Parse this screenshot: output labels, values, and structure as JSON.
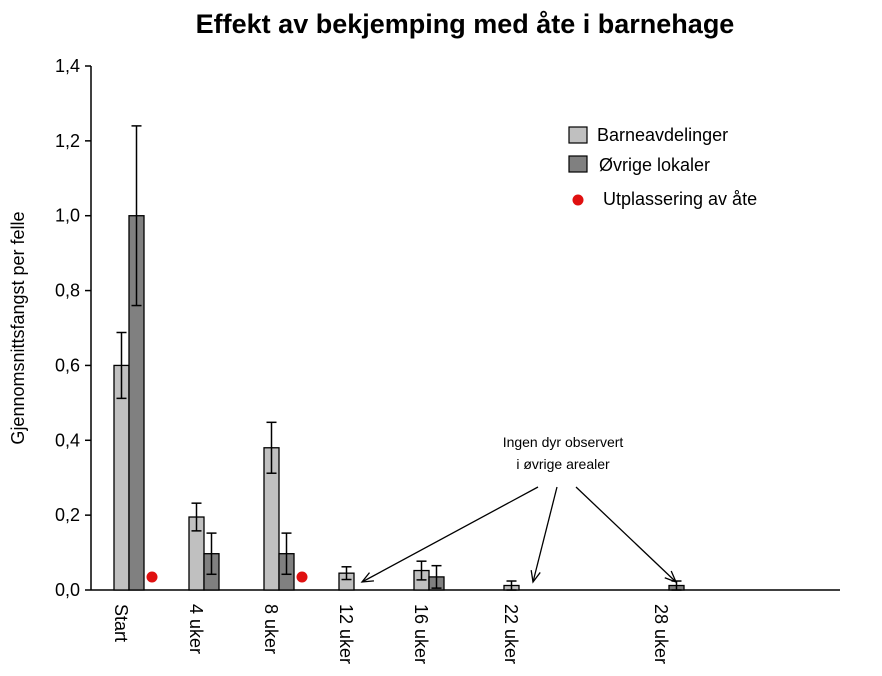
{
  "chart_data": {
    "type": "bar",
    "title": "Effekt av bekjemping med åte i barnehage",
    "xlabel": "",
    "ylabel": "Gjennomsnittsfangst per felle",
    "ylim": [
      0,
      1.4
    ],
    "yticks": [
      "0,0",
      "0,2",
      "0,4",
      "0,6",
      "0,8",
      "1,0",
      "1,2",
      "1,4"
    ],
    "categories": [
      "Start",
      "4 uker",
      "8 uker",
      "12 uker",
      "16 uker",
      "22 uker",
      "28 uker"
    ],
    "series": [
      {
        "name": "Barneavdelinger",
        "color": "#c0c0c0",
        "values": [
          0.6,
          0.195,
          0.38,
          0.045,
          0.052,
          0.012,
          0.0
        ],
        "errors": [
          0.088,
          0.037,
          0.068,
          0.017,
          0.025,
          0.012,
          0.0
        ]
      },
      {
        "name": "Øvrige lokaler",
        "color": "#808080",
        "values": [
          1.0,
          0.097,
          0.097,
          0.0,
          0.035,
          0.0,
          0.012
        ],
        "errors": [
          0.24,
          0.055,
          0.055,
          0.0,
          0.03,
          0.0,
          0.012
        ]
      }
    ],
    "bait_marker": {
      "name": "Utplassering av åte",
      "color": "#e01010",
      "categories": [
        "Start",
        "8 uker"
      ]
    },
    "annotation": {
      "lines": [
        "Ingen dyr observert",
        "i øvrige arealer"
      ],
      "targets": [
        "12 uker",
        "22 uker",
        "28 uker"
      ]
    },
    "legend_position": "top-right",
    "grid": false
  }
}
